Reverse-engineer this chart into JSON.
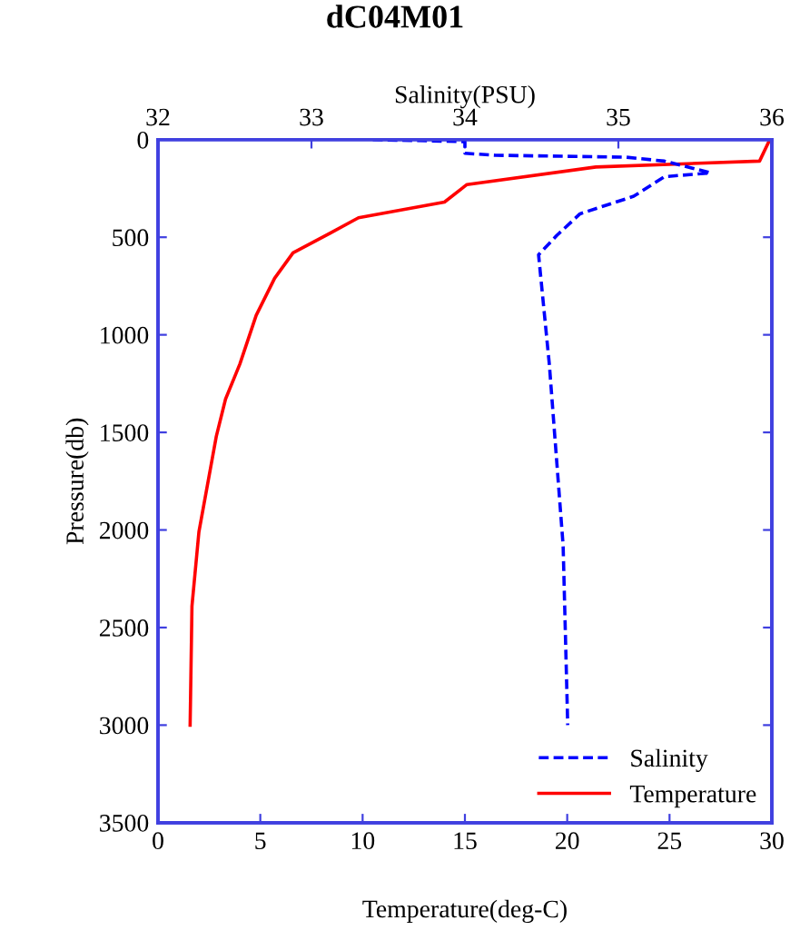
{
  "chart_data": {
    "type": "line",
    "title": "dC04M01",
    "x2label": "Salinity(PSU)",
    "xlabel": "Temperature(deg-C)",
    "ylabel": "Pressure(db)",
    "xlim": [
      0,
      30
    ],
    "xticks": [
      0,
      5,
      10,
      15,
      20,
      25,
      30
    ],
    "x2lim": [
      32,
      36
    ],
    "x2ticks": [
      32,
      33,
      34,
      35,
      36
    ],
    "ylim": [
      3500,
      0
    ],
    "yticks": [
      0,
      500,
      1000,
      1500,
      2000,
      2500,
      3000,
      3500
    ],
    "legend": "bottom right",
    "grid": false,
    "series": [
      {
        "name": "Salinity",
        "color": "#0000ff",
        "axis": "x2",
        "line_style": "dashed",
        "x": [
          33.4,
          34.0,
          34.0,
          34.2,
          35.05,
          35.3,
          35.5,
          35.6,
          35.3,
          35.1,
          34.75,
          34.6,
          34.48,
          34.55,
          34.64,
          34.67
        ],
        "values": [
          0,
          10,
          70,
          80,
          90,
          110,
          150,
          170,
          190,
          290,
          380,
          490,
          590,
          1150,
          2080,
          3000
        ]
      },
      {
        "name": "Temperature",
        "color": "#ff0000",
        "line_style": "solid",
        "x": [
          29.9,
          29.4,
          21.4,
          15.1,
          14.0,
          9.8,
          8.4,
          6.6,
          5.7,
          4.8,
          4.0,
          3.3,
          2.85,
          2.0,
          1.66,
          1.57
        ],
        "values": [
          0,
          110,
          140,
          230,
          320,
          400,
          480,
          580,
          710,
          900,
          1150,
          1330,
          1520,
          2010,
          2390,
          3000
        ]
      }
    ]
  }
}
